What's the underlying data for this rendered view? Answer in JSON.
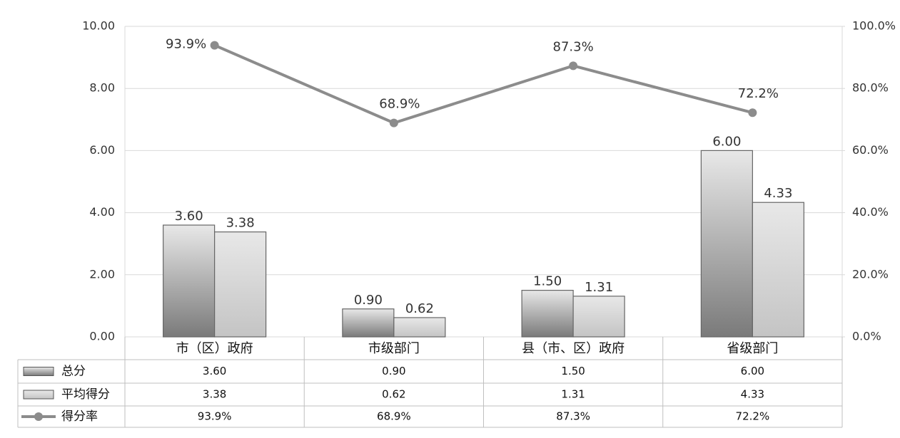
{
  "chart_data": {
    "type": "bar",
    "categories": [
      "市（区）政府",
      "市级部门",
      "县（市、区）政府",
      "省级部门"
    ],
    "series": [
      {
        "name": "总分",
        "color": "#7a7a7a",
        "values": [
          3.6,
          0.9,
          1.5,
          6.0
        ],
        "value_labels": [
          "3.60",
          "0.90",
          "1.50",
          "6.00"
        ]
      },
      {
        "name": "平均得分",
        "color": "#c4c4c4",
        "values": [
          3.38,
          0.62,
          1.31,
          4.33
        ],
        "value_labels": [
          "3.38",
          "0.62",
          "1.31",
          "4.33"
        ]
      },
      {
        "name": "得分率",
        "type": "line",
        "axis": "y2",
        "color": "#8c8c8c",
        "values": [
          93.9,
          68.9,
          87.3,
          72.2
        ],
        "value_labels": [
          "93.9%",
          "68.9%",
          "87.3%",
          "72.2%"
        ]
      }
    ],
    "ylim": [
      0,
      10
    ],
    "yticks": [
      {
        "value": 0,
        "label": "0.00"
      },
      {
        "value": 2,
        "label": "2.00"
      },
      {
        "value": 4,
        "label": "4.00"
      },
      {
        "value": 6,
        "label": "6.00"
      },
      {
        "value": 8,
        "label": "8.00"
      },
      {
        "value": 10,
        "label": "10.00"
      }
    ],
    "y2lim": [
      0,
      100
    ],
    "y2ticks": [
      {
        "value": 0,
        "label": "0.0%"
      },
      {
        "value": 20,
        "label": "20.0%"
      },
      {
        "value": 40,
        "label": "40.0%"
      },
      {
        "value": 60,
        "label": "60.0%"
      },
      {
        "value": 80,
        "label": "80.0%"
      },
      {
        "value": 100,
        "label": "100.0%"
      }
    ],
    "grid": true,
    "data_table": true
  }
}
